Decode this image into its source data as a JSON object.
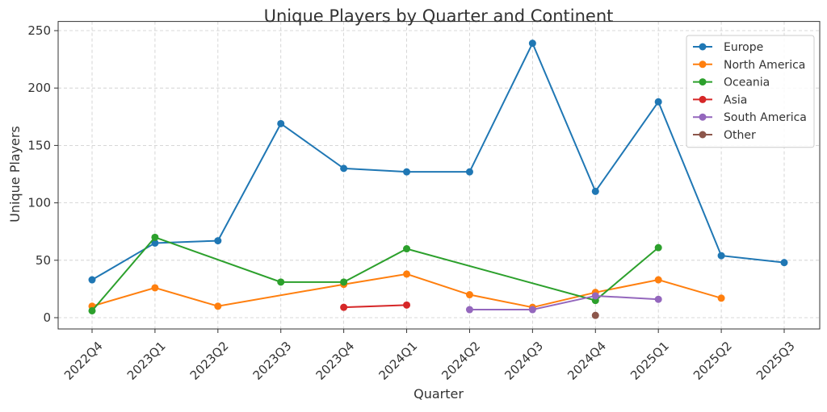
{
  "chart_data": {
    "type": "line",
    "title": "Unique Players by Quarter and Continent",
    "xlabel": "Quarter",
    "ylabel": "Unique Players",
    "categories": [
      "2022Q4",
      "2023Q1",
      "2023Q2",
      "2023Q3",
      "2023Q4",
      "2024Q1",
      "2024Q2",
      "2024Q3",
      "2024Q4",
      "2025Q1",
      "2025Q2",
      "2025Q3"
    ],
    "ylim": [
      -10,
      260
    ],
    "yticks": [
      0,
      50,
      100,
      150,
      200,
      250
    ],
    "grid": true,
    "legend_position": "top-right",
    "series": [
      {
        "name": "Europe",
        "color": "#1f77b4",
        "values": [
          33,
          65,
          67,
          169,
          130,
          127,
          127,
          239,
          110,
          188,
          54,
          48
        ]
      },
      {
        "name": "North America",
        "color": "#ff7f0e",
        "values": [
          10,
          26,
          10,
          null,
          29,
          38,
          20,
          9,
          22,
          33,
          17,
          null
        ]
      },
      {
        "name": "Oceania",
        "color": "#2ca02c",
        "values": [
          6,
          70,
          null,
          31,
          31,
          60,
          null,
          null,
          15,
          61,
          null,
          null
        ]
      },
      {
        "name": "Asia",
        "color": "#d62728",
        "values": [
          null,
          null,
          null,
          null,
          9,
          11,
          null,
          null,
          null,
          null,
          null,
          null
        ]
      },
      {
        "name": "South America",
        "color": "#9467bd",
        "values": [
          null,
          null,
          null,
          null,
          null,
          null,
          7,
          7,
          19,
          16,
          null,
          null
        ]
      },
      {
        "name": "Other",
        "color": "#8c564b",
        "values": [
          null,
          null,
          null,
          null,
          null,
          null,
          null,
          null,
          2,
          null,
          null,
          null
        ]
      }
    ]
  }
}
